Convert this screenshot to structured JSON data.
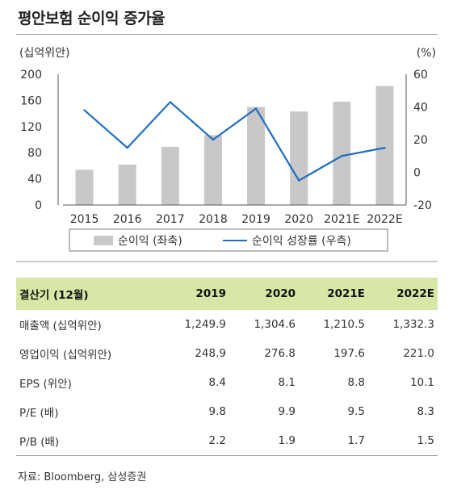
{
  "title": "평안보험 순이익 증가율",
  "chart_data": {
    "type": "bar",
    "categories": [
      "2015",
      "2016",
      "2017",
      "2018",
      "2019",
      "2020",
      "2021E",
      "2022E"
    ],
    "series": [
      {
        "name": "순이익 (좌축)",
        "type": "bar",
        "axis": "left",
        "color": "#c8c8c8",
        "values": [
          54,
          62,
          89,
          107,
          150,
          143,
          158,
          182
        ]
      },
      {
        "name": "순이익 성장률 (우측)",
        "type": "line",
        "axis": "right",
        "color": "#1f6fbf",
        "values": [
          38,
          15,
          43,
          20,
          39,
          -5,
          10,
          15
        ]
      }
    ],
    "ylabel_left": "(십억위안)",
    "ylabel_right": "(%)",
    "ylim_left": [
      0,
      200
    ],
    "ylim_right": [
      -20,
      60
    ],
    "yticks_left": [
      "0",
      "40",
      "80",
      "120",
      "160",
      "200"
    ],
    "yticks_right": [
      "-20",
      "0",
      "20",
      "40",
      "60"
    ],
    "grid": false,
    "legend": "bottom"
  },
  "table": {
    "headers": [
      "결산기 (12월)",
      "2019",
      "2020",
      "2021E",
      "2022E"
    ],
    "rows": [
      [
        "매출액 (십억위안)",
        "1,249.9",
        "1,304.6",
        "1,210.5",
        "1,332.3"
      ],
      [
        "영업이익 (십억위안)",
        "248.9",
        "276.8",
        "197.6",
        "221.0"
      ],
      [
        "EPS (위안)",
        "8.4",
        "8.1",
        "8.8",
        "10.1"
      ],
      [
        "P/E (배)",
        "9.8",
        "9.9",
        "9.5",
        "8.3"
      ],
      [
        "P/B (배)",
        "2.2",
        "1.9",
        "1.7",
        "1.5"
      ]
    ]
  },
  "source": "자료: Bloomberg, 삼성증권"
}
